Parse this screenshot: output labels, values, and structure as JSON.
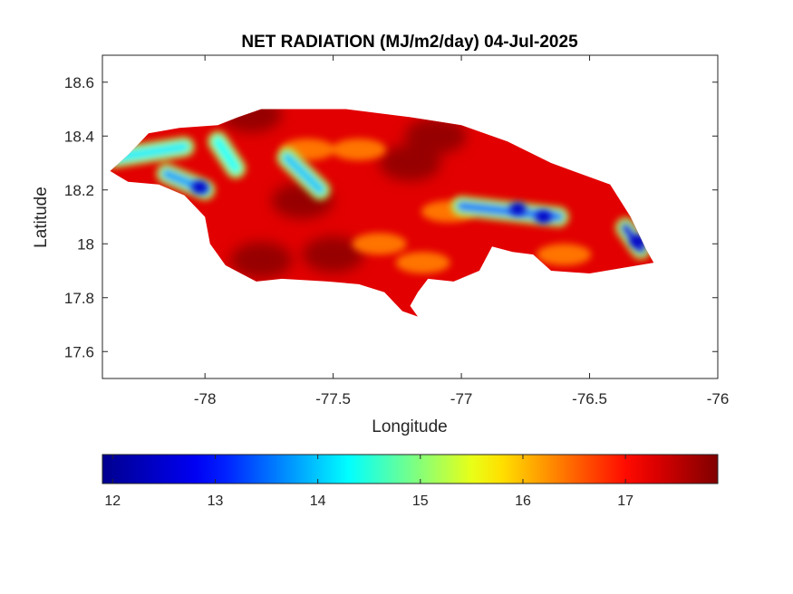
{
  "title": "NET RADIATION (MJ/m2/day) 04-Jul-2025",
  "x_axis": {
    "label": "Longitude",
    "range": [
      -78.4,
      -76.0
    ],
    "ticks": [
      -78,
      -77.5,
      -77,
      -76.5,
      -76
    ],
    "tick_labels": [
      "-78",
      "-77.5",
      "-77",
      "-76.5",
      "-76"
    ]
  },
  "y_axis": {
    "label": "Latitude",
    "range": [
      17.5,
      18.7
    ],
    "ticks": [
      17.6,
      17.8,
      18.0,
      18.2,
      18.4,
      18.6
    ],
    "tick_labels": [
      "17.6",
      "17.8",
      "18",
      "18.2",
      "18.4",
      "18.6"
    ]
  },
  "colorbar": {
    "range": [
      11.9,
      17.9
    ],
    "ticks": [
      12,
      13,
      14,
      15,
      16,
      17
    ],
    "tick_labels": [
      "12",
      "13",
      "14",
      "15",
      "16",
      "17"
    ],
    "colormap": [
      "#00008f",
      "#0000ff",
      "#00ffff",
      "#ffff00",
      "#ff0000",
      "#800000"
    ]
  },
  "map": {
    "region_outline_lonlat": [
      [
        -78.37,
        18.27
      ],
      [
        -78.3,
        18.33
      ],
      [
        -78.22,
        18.41
      ],
      [
        -78.1,
        18.43
      ],
      [
        -77.95,
        18.44
      ],
      [
        -77.87,
        18.47
      ],
      [
        -77.78,
        18.5
      ],
      [
        -77.45,
        18.5
      ],
      [
        -77.2,
        18.47
      ],
      [
        -77.0,
        18.44
      ],
      [
        -76.82,
        18.38
      ],
      [
        -76.65,
        18.3
      ],
      [
        -76.42,
        18.22
      ],
      [
        -76.34,
        18.1
      ],
      [
        -76.28,
        17.98
      ],
      [
        -76.25,
        17.93
      ],
      [
        -76.5,
        17.89
      ],
      [
        -76.65,
        17.9
      ],
      [
        -76.72,
        17.96
      ],
      [
        -76.8,
        17.97
      ],
      [
        -76.88,
        17.99
      ],
      [
        -76.93,
        17.9
      ],
      [
        -77.03,
        17.86
      ],
      [
        -77.13,
        17.87
      ],
      [
        -77.17,
        17.82
      ],
      [
        -77.2,
        17.77
      ],
      [
        -77.17,
        17.73
      ],
      [
        -77.23,
        17.75
      ],
      [
        -77.3,
        17.82
      ],
      [
        -77.4,
        17.85
      ],
      [
        -77.52,
        17.86
      ],
      [
        -77.7,
        17.87
      ],
      [
        -77.8,
        17.86
      ],
      [
        -77.92,
        17.92
      ],
      [
        -77.98,
        18.0
      ],
      [
        -78.0,
        18.1
      ],
      [
        -78.08,
        18.18
      ],
      [
        -78.18,
        18.22
      ],
      [
        -78.3,
        18.23
      ]
    ],
    "hot_cores": [
      [
        -77.78,
        17.94
      ],
      [
        -77.2,
        18.3
      ],
      [
        -77.5,
        17.96
      ],
      [
        -77.1,
        18.4
      ],
      [
        -77.82,
        18.48
      ],
      [
        -77.62,
        18.16
      ]
    ],
    "warm_patches": [
      [
        -77.4,
        18.35
      ],
      [
        -77.32,
        18.0
      ],
      [
        -77.05,
        18.12
      ],
      [
        -77.6,
        18.35
      ],
      [
        -77.15,
        17.93
      ],
      [
        -76.6,
        17.96
      ]
    ],
    "cool_streaks": [
      {
        "from": [
          -78.35,
          18.32
        ],
        "to": [
          -78.08,
          18.36
        ],
        "value": 14.2
      },
      {
        "from": [
          -78.15,
          18.26
        ],
        "to": [
          -78.0,
          18.2
        ],
        "value": 13.8
      },
      {
        "from": [
          -77.95,
          18.38
        ],
        "to": [
          -77.88,
          18.28
        ],
        "value": 14.3
      },
      {
        "from": [
          -77.68,
          18.32
        ],
        "to": [
          -77.55,
          18.2
        ],
        "value": 14.0
      },
      {
        "from": [
          -77.0,
          18.14
        ],
        "to": [
          -76.62,
          18.1
        ],
        "value": 13.6
      },
      {
        "from": [
          -76.36,
          18.06
        ],
        "to": [
          -76.3,
          17.98
        ],
        "value": 12.6
      }
    ],
    "cold_cores": [
      [
        -76.78,
        18.13
      ],
      [
        -76.68,
        18.1
      ],
      [
        -76.31,
        18.01
      ],
      [
        -78.02,
        18.21
      ]
    ]
  }
}
